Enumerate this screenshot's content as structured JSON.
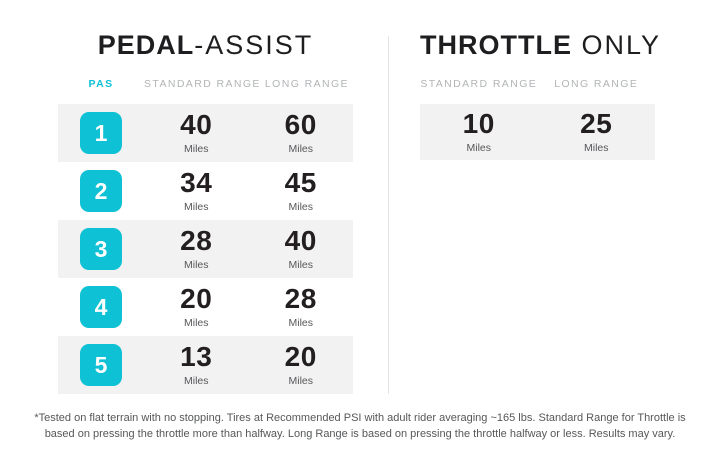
{
  "theme": {
    "teal": "#0ec1d4",
    "row_shade": "#f2f2f2",
    "header_gray": "#b2b4b6",
    "text_dark": "#231f20",
    "muted_gray": "#565759",
    "divider_gray": "#e4e4e4"
  },
  "pedal_assist": {
    "title_bold": "PEDAL",
    "title_light": "-ASSIST",
    "headers": {
      "pas": "PAS",
      "standard": "STANDARD RANGE",
      "long": "LONG RANGE"
    },
    "unit": "Miles",
    "rows": [
      {
        "pas": "1",
        "standard": "40",
        "long": "60"
      },
      {
        "pas": "2",
        "standard": "34",
        "long": "45"
      },
      {
        "pas": "3",
        "standard": "28",
        "long": "40"
      },
      {
        "pas": "4",
        "standard": "20",
        "long": "28"
      },
      {
        "pas": "5",
        "standard": "13",
        "long": "20"
      }
    ]
  },
  "throttle_only": {
    "title_bold": "THROTTLE",
    "title_light": " ONLY",
    "headers": {
      "standard": "STANDARD RANGE",
      "long": "LONG RANGE"
    },
    "unit": "Miles",
    "row": {
      "standard": "10",
      "long": "25"
    }
  },
  "footnote": {
    "line1": "*Tested on flat terrain with no stopping. Tires at Recommended PSI with adult rider averaging ~165 lbs. Standard Range for Throttle is",
    "line2": "based on pressing the throttle more than halfway. Long Range is based on pressing the throttle halfway or less. Results may vary."
  },
  "chart_data": [
    {
      "type": "table",
      "title": "PEDAL-ASSIST",
      "columns": [
        "PAS",
        "STANDARD RANGE",
        "LONG RANGE"
      ],
      "rows": [
        [
          1,
          40,
          60
        ],
        [
          2,
          34,
          45
        ],
        [
          3,
          28,
          40
        ],
        [
          4,
          20,
          28
        ],
        [
          5,
          13,
          20
        ]
      ],
      "unit": "Miles"
    },
    {
      "type": "table",
      "title": "THROTTLE ONLY",
      "columns": [
        "STANDARD RANGE",
        "LONG RANGE"
      ],
      "rows": [
        [
          10,
          25
        ]
      ],
      "unit": "Miles"
    }
  ]
}
